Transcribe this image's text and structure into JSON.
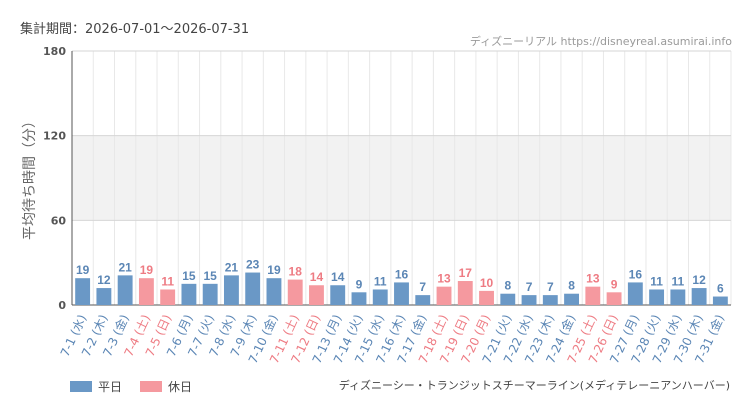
{
  "header": {
    "period": "集計期間：2026-07-01～2026-07-31",
    "credit": "ディズニーリアル https://disneyreal.asumirai.info"
  },
  "legend": {
    "weekday": "平日",
    "holiday": "休日"
  },
  "footer": {
    "attraction": "ディズニーシー・トランジットスチーマーライン(メディテレーニアンハーバー)"
  },
  "colors": {
    "weekday": "#6a98c6",
    "holiday": "#f5999f",
    "weekday_text": "#5b86b5",
    "holiday_text": "#ee7b83"
  },
  "chart_data": {
    "type": "bar",
    "ylabel": "平均待ち時間（分）",
    "ylim": [
      0,
      180
    ],
    "yticks": [
      0,
      60,
      120,
      180
    ],
    "grid": true,
    "legend_position": "bottom-left",
    "categories": [
      "7-1 (水)",
      "7-2 (木)",
      "7-3 (金)",
      "7-4 (土)",
      "7-5 (日)",
      "7-6 (月)",
      "7-7 (火)",
      "7-8 (水)",
      "7-9 (木)",
      "7-10 (金)",
      "7-11 (土)",
      "7-12 (日)",
      "7-13 (月)",
      "7-14 (火)",
      "7-15 (水)",
      "7-16 (木)",
      "7-17 (金)",
      "7-18 (土)",
      "7-19 (日)",
      "7-20 (月)",
      "7-21 (火)",
      "7-22 (水)",
      "7-23 (木)",
      "7-24 (金)",
      "7-25 (土)",
      "7-26 (日)",
      "7-27 (月)",
      "7-28 (火)",
      "7-29 (水)",
      "7-30 (木)",
      "7-31 (金)"
    ],
    "values": [
      19,
      12,
      21,
      19,
      11,
      15,
      15,
      21,
      23,
      19,
      18,
      14,
      14,
      9,
      11,
      16,
      7,
      13,
      17,
      10,
      8,
      7,
      7,
      8,
      13,
      9,
      16,
      11,
      11,
      12,
      6
    ],
    "day_type": [
      "weekday",
      "weekday",
      "weekday",
      "holiday",
      "holiday",
      "weekday",
      "weekday",
      "weekday",
      "weekday",
      "weekday",
      "holiday",
      "holiday",
      "weekday",
      "weekday",
      "weekday",
      "weekday",
      "weekday",
      "holiday",
      "holiday",
      "holiday",
      "weekday",
      "weekday",
      "weekday",
      "weekday",
      "holiday",
      "holiday",
      "weekday",
      "weekday",
      "weekday",
      "weekday",
      "weekday"
    ]
  }
}
